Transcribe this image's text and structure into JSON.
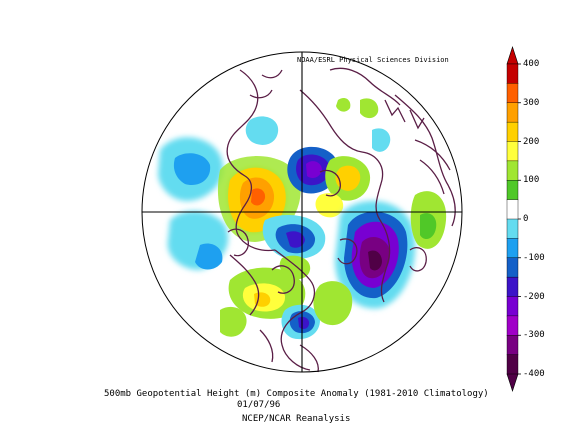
{
  "map": {
    "credit": "NOAA/ESRL Physical Sciences Division",
    "title": "500mb Geopotential Height (m) Composite Anomaly (1981-2010 Climatology)",
    "date": "01/07/96",
    "source": "NCEP/NCAR Reanalysis",
    "projection": "north-polar-stereographic"
  },
  "colorbar": {
    "labels": [
      "400",
      "300",
      "200",
      "100",
      "0",
      "-100",
      "-200",
      "-300",
      "-400"
    ],
    "colors": [
      "#c40000",
      "#ff6000",
      "#ffa000",
      "#ffd000",
      "#ffff3c",
      "#a0e632",
      "#50c828",
      "#ffffff",
      "#64dcf0",
      "#1ea0f0",
      "#1460c8",
      "#3c14c8",
      "#7800d2",
      "#a000c8",
      "#780082",
      "#500046"
    ]
  },
  "colors": {
    "coast": "#5a1e46",
    "grid": "#000000"
  }
}
